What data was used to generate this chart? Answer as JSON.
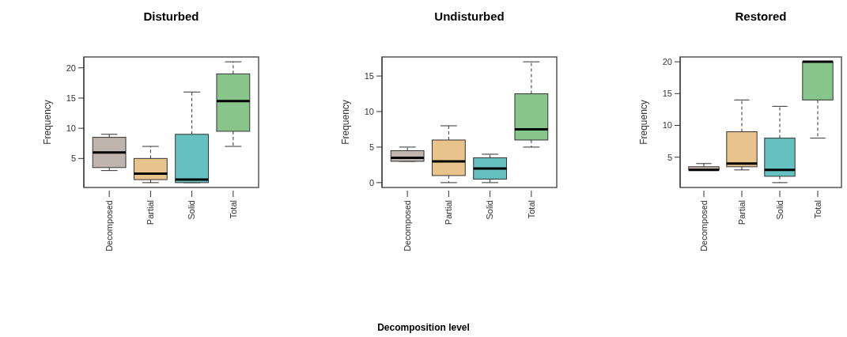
{
  "chart_data": [
    {
      "type": "box",
      "title": "Disturbed",
      "ylabel": "Frequency",
      "categories": [
        "Decomposed",
        "Partial",
        "Solid",
        "Total"
      ],
      "colors": [
        "#bfb5ae",
        "#e8c48c",
        "#66c2c0",
        "#88c58a"
      ],
      "ylim": [
        0.2,
        21.8
      ],
      "yticks": [
        5,
        10,
        15,
        20
      ],
      "boxes": [
        {
          "low": 3,
          "q1": 3.5,
          "median": 6,
          "q3": 8.5,
          "high": 9
        },
        {
          "low": 1,
          "q1": 1.5,
          "median": 2.5,
          "q3": 5,
          "high": 7
        },
        {
          "low": 1,
          "q1": 1,
          "median": 1.5,
          "q3": 9,
          "high": 16
        },
        {
          "low": 7,
          "q1": 9.5,
          "median": 14.5,
          "q3": 19,
          "high": 21
        }
      ]
    },
    {
      "type": "box",
      "title": "Undisturbed",
      "ylabel": "Frequency",
      "xlabel": "Decomposition level",
      "categories": [
        "Decomposed",
        "Partial",
        "Solid",
        "Total"
      ],
      "colors": [
        "#bfb5ae",
        "#e8c48c",
        "#66c2c0",
        "#88c58a"
      ],
      "ylim": [
        -0.68,
        17.68
      ],
      "yticks": [
        0,
        5,
        10,
        15
      ],
      "boxes": [
        {
          "low": 3,
          "q1": 3,
          "median": 3.5,
          "q3": 4.5,
          "high": 5
        },
        {
          "low": 0,
          "q1": 1,
          "median": 3,
          "q3": 6,
          "high": 8
        },
        {
          "low": 0,
          "q1": 0.5,
          "median": 2,
          "q3": 3.5,
          "high": 4
        },
        {
          "low": 5,
          "q1": 6,
          "median": 7.5,
          "q3": 12.5,
          "high": 17
        }
      ]
    },
    {
      "type": "box",
      "title": "Restored",
      "ylabel": "Frequency",
      "categories": [
        "Decomposed",
        "Partial",
        "Solid",
        "Total"
      ],
      "colors": [
        "#bfb5ae",
        "#e8c48c",
        "#66c2c0",
        "#88c58a"
      ],
      "ylim": [
        0.24,
        20.76
      ],
      "yticks": [
        5,
        10,
        15,
        20
      ],
      "boxes": [
        {
          "low": 3,
          "q1": 3,
          "median": 3,
          "q3": 3.5,
          "high": 4
        },
        {
          "low": 3,
          "q1": 3.5,
          "median": 4,
          "q3": 9,
          "high": 14
        },
        {
          "low": 1,
          "q1": 2,
          "median": 3,
          "q3": 8,
          "high": 13
        },
        {
          "low": 8,
          "q1": 14,
          "median": 20,
          "q3": 20,
          "high": 20
        }
      ]
    }
  ]
}
